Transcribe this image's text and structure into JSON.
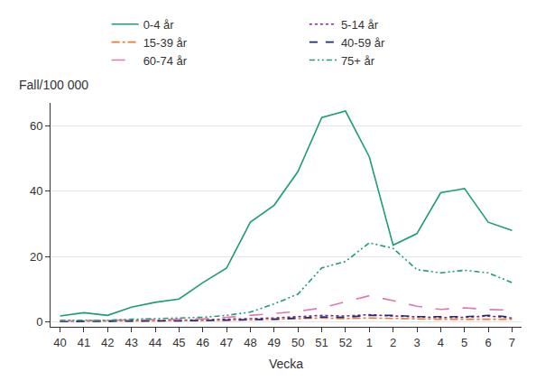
{
  "chart_data": {
    "type": "line",
    "x_label": "Vecka",
    "y_label": "Fall/100 000",
    "categories": [
      "40",
      "41",
      "42",
      "43",
      "44",
      "45",
      "46",
      "47",
      "48",
      "49",
      "50",
      "51",
      "52",
      "1",
      "2",
      "3",
      "4",
      "5",
      "6",
      "7"
    ],
    "ylim": [
      -1.5,
      67
    ],
    "yticks": [
      0,
      20,
      40,
      60
    ],
    "grid": true,
    "legend": "top",
    "series": [
      {
        "name": "0-4 år",
        "color": "#1b9e77",
        "line_style": "solid",
        "values": [
          1.8,
          2.8,
          2.0,
          4.5,
          6.0,
          7.0,
          12.0,
          16.5,
          30.5,
          35.7,
          46.0,
          62.5,
          64.5,
          50.5,
          23.5,
          27.0,
          39.5,
          40.8,
          30.5,
          28.0
        ]
      },
      {
        "name": "5-14 år",
        "color": "#7b2a8a",
        "line_style": "dot",
        "values": [
          0.2,
          0.3,
          0.3,
          0.4,
          0.5,
          0.5,
          0.6,
          0.8,
          1.0,
          1.2,
          1.5,
          2.0,
          1.8,
          2.2,
          1.8,
          1.5,
          1.3,
          1.4,
          1.8,
          1.2
        ]
      },
      {
        "name": "15-39 år",
        "color": "#f07a30",
        "line_style": "dashdot",
        "values": [
          0.2,
          0.2,
          0.2,
          0.3,
          0.3,
          0.3,
          0.4,
          0.5,
          0.6,
          0.8,
          1.0,
          1.2,
          1.0,
          1.2,
          1.0,
          0.9,
          0.8,
          0.8,
          0.9,
          0.8
        ]
      },
      {
        "name": "40-59 år",
        "color": "#1f2a7a",
        "line_style": "dash",
        "values": [
          0.1,
          0.2,
          0.2,
          0.2,
          0.3,
          0.3,
          0.4,
          0.5,
          0.6,
          0.8,
          1.2,
          1.5,
          1.4,
          2.0,
          2.0,
          1.6,
          1.6,
          1.6,
          2.0,
          1.5
        ]
      },
      {
        "name": "60-74 år",
        "color": "#de77ae",
        "line_style": "longdash",
        "values": [
          0.3,
          0.4,
          0.4,
          0.5,
          0.6,
          0.7,
          0.9,
          1.4,
          2.0,
          2.5,
          3.2,
          4.3,
          6.2,
          8.0,
          6.5,
          4.8,
          3.8,
          4.3,
          3.8,
          3.6
        ]
      },
      {
        "name": "75+ år",
        "color": "#1b9e77",
        "line_style": "dashdotdot",
        "values": [
          0.5,
          0.5,
          0.5,
          0.8,
          1.0,
          1.4,
          1.4,
          2.0,
          3.0,
          5.5,
          8.5,
          16.5,
          18.5,
          24.2,
          22.5,
          16.0,
          15.0,
          15.8,
          15.0,
          12.0
        ]
      }
    ]
  }
}
